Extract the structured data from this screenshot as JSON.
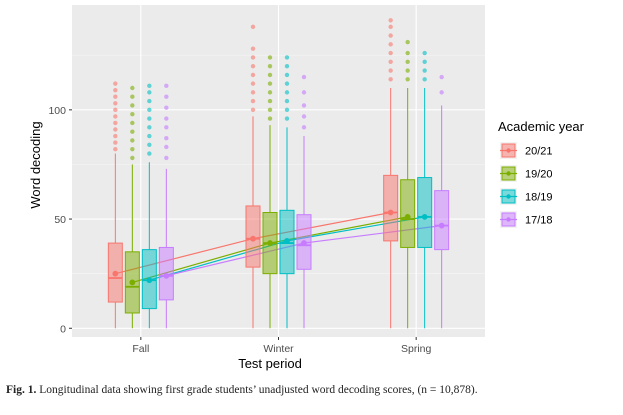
{
  "chart_data": {
    "type": "boxplot",
    "xlabel": "Test period",
    "ylabel": "Word decoding",
    "categories": [
      "Fall",
      "Winter",
      "Spring"
    ],
    "ylim": [
      -4,
      148
    ],
    "yticks": [
      0,
      50,
      100
    ],
    "grid": true,
    "legend": {
      "title": "Academic year",
      "placement": "right"
    },
    "series": [
      {
        "name": "20/21",
        "color": "#F8766D",
        "boxes": [
          {
            "whisker_low": 0,
            "q1": 12,
            "median": 23,
            "q3": 39,
            "whisker_high": 80,
            "mean": 25,
            "outliers": [
              82,
              85,
              88,
              91,
              94,
              97,
              100,
              103,
              106,
              109,
              112
            ]
          },
          {
            "whisker_low": 0,
            "q1": 28,
            "median": 41,
            "q3": 56,
            "whisker_high": 97,
            "mean": 41,
            "outliers": [
              100,
              104,
              108,
              112,
              116,
              120,
              124,
              128,
              138
            ]
          },
          {
            "whisker_low": 0,
            "q1": 40,
            "median": 53,
            "q3": 70,
            "whisker_high": 110,
            "mean": 53,
            "outliers": [
              114,
              118,
              122,
              126,
              130,
              134,
              138,
              141
            ]
          }
        ]
      },
      {
        "name": "19/20",
        "color": "#7CAE00",
        "boxes": [
          {
            "whisker_low": 0,
            "q1": 7,
            "median": 19,
            "q3": 35,
            "whisker_high": 75,
            "mean": 21,
            "outliers": [
              78,
              82,
              86,
              90,
              94,
              98,
              102,
              106,
              110
            ]
          },
          {
            "whisker_low": 0,
            "q1": 25,
            "median": 39,
            "q3": 53,
            "whisker_high": 93,
            "mean": 39,
            "outliers": [
              96,
              100,
              104,
              108,
              112,
              116,
              120,
              124
            ]
          },
          {
            "whisker_low": 0,
            "q1": 37,
            "median": 50,
            "q3": 68,
            "whisker_high": 110,
            "mean": 51,
            "outliers": [
              114,
              118,
              122,
              126,
              131
            ]
          }
        ]
      },
      {
        "name": "18/19",
        "color": "#00BFC4",
        "boxes": [
          {
            "whisker_low": 0,
            "q1": 9,
            "median": 22,
            "q3": 36,
            "whisker_high": 76,
            "mean": 22,
            "outliers": [
              80,
              84,
              88,
              92,
              96,
              100,
              104,
              108,
              111
            ]
          },
          {
            "whisker_low": 0,
            "q1": 25,
            "median": 39,
            "q3": 54,
            "whisker_high": 92,
            "mean": 40,
            "outliers": [
              96,
              100,
              104,
              108,
              112,
              116,
              120,
              124
            ]
          },
          {
            "whisker_low": 0,
            "q1": 37,
            "median": 51,
            "q3": 69,
            "whisker_high": 110,
            "mean": 51,
            "outliers": [
              114,
              118,
              122,
              126
            ]
          }
        ]
      },
      {
        "name": "17/18",
        "color": "#C77CFF",
        "boxes": [
          {
            "whisker_low": 0,
            "q1": 13,
            "median": 24,
            "q3": 37,
            "whisker_high": 73,
            "mean": 24,
            "outliers": [
              78,
              83,
              87,
              92,
              96,
              101,
              106,
              111
            ]
          },
          {
            "whisker_low": 0,
            "q1": 27,
            "median": 38,
            "q3": 52,
            "whisker_high": 88,
            "mean": 39,
            "outliers": [
              92,
              97,
              102,
              108,
              115
            ]
          },
          {
            "whisker_low": 0,
            "q1": 36,
            "median": 47,
            "q3": 63,
            "whisker_high": 102,
            "mean": 47,
            "outliers": [
              108,
              115
            ]
          }
        ]
      }
    ]
  },
  "caption": {
    "label": "Fig. 1.",
    "text": "Longitudinal data showing first grade students’ unadjusted word decoding scores, (n = 10,878)."
  }
}
